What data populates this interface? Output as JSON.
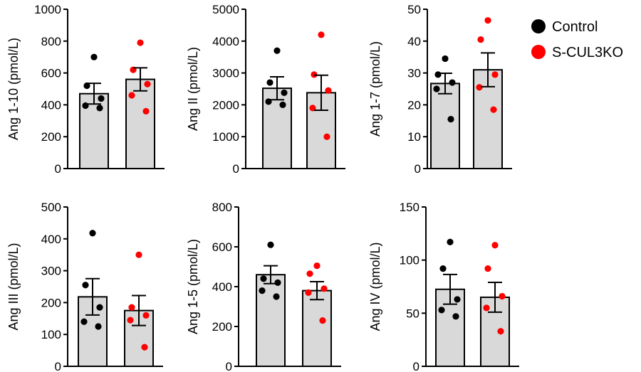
{
  "legend": {
    "items": [
      {
        "label": "Control",
        "color": "#000000"
      },
      {
        "label": "S-CUL3KO",
        "color": "#ff0000"
      }
    ]
  },
  "colors": {
    "bar_fill": "#d9d9d9",
    "bar_stroke": "#000000",
    "control": "#000000",
    "ko": "#ff0000"
  },
  "chart_data": [
    {
      "type": "bar",
      "ylabel": "Ang 1-10 (pmol/L)",
      "ylim": [
        0,
        1000
      ],
      "yticks": [
        0,
        200,
        400,
        600,
        800,
        1000
      ],
      "categories": [
        "Control",
        "S-CUL3KO"
      ],
      "values": [
        470,
        560
      ],
      "sem": [
        65,
        72
      ],
      "points": [
        [
          700,
          520,
          440,
          395,
          380
        ],
        [
          790,
          620,
          530,
          460,
          360
        ]
      ]
    },
    {
      "type": "bar",
      "ylabel": "Ang II (pmol/L)",
      "ylim": [
        0,
        5000
      ],
      "yticks": [
        0,
        1000,
        2000,
        3000,
        4000,
        5000
      ],
      "categories": [
        "Control",
        "S-CUL3KO"
      ],
      "values": [
        2520,
        2380
      ],
      "sem": [
        360,
        550
      ],
      "points": [
        [
          3700,
          2700,
          2380,
          2100,
          2000
        ],
        [
          4200,
          2950,
          2450,
          1900,
          1000
        ]
      ]
    },
    {
      "type": "bar",
      "ylabel": "Ang 1-7 (pmol/L)",
      "ylim": [
        0,
        50
      ],
      "yticks": [
        0,
        10,
        20,
        30,
        40,
        50
      ],
      "categories": [
        "Control",
        "S-CUL3KO"
      ],
      "values": [
        26.7,
        31
      ],
      "sem": [
        3.2,
        5.3
      ],
      "points": [
        [
          34.5,
          29.5,
          27,
          25,
          15.5
        ],
        [
          46.5,
          40.5,
          29.5,
          25.5,
          18.5
        ]
      ]
    },
    {
      "type": "bar",
      "ylabel": "Ang III (pmol/L)",
      "ylim": [
        0,
        500
      ],
      "yticks": [
        0,
        100,
        200,
        300,
        400,
        500
      ],
      "categories": [
        "Control",
        "S-CUL3KO"
      ],
      "values": [
        218,
        175
      ],
      "sem": [
        57,
        47
      ],
      "points": [
        [
          418,
          255,
          185,
          140,
          125
        ],
        [
          350,
          185,
          160,
          145,
          60
        ]
      ]
    },
    {
      "type": "bar",
      "ylabel": "Ang 1-5 (pmol/L)",
      "ylim": [
        0,
        800
      ],
      "yticks": [
        0,
        200,
        400,
        600,
        800
      ],
      "categories": [
        "Control",
        "S-CUL3KO"
      ],
      "values": [
        460,
        380
      ],
      "sem": [
        45,
        45
      ],
      "points": [
        [
          610,
          440,
          420,
          380,
          350
        ],
        [
          505,
          465,
          390,
          370,
          230
        ]
      ]
    },
    {
      "type": "bar",
      "ylabel": "Ang IV (pmol/L)",
      "ylim": [
        0,
        150
      ],
      "yticks": [
        0,
        50,
        100,
        150
      ],
      "categories": [
        "Control",
        "S-CUL3KO"
      ],
      "values": [
        72.5,
        65
      ],
      "sem": [
        14,
        14
      ],
      "points": [
        [
          117,
          92,
          63,
          53,
          47
        ],
        [
          114,
          92,
          66,
          55,
          33
        ]
      ]
    }
  ]
}
